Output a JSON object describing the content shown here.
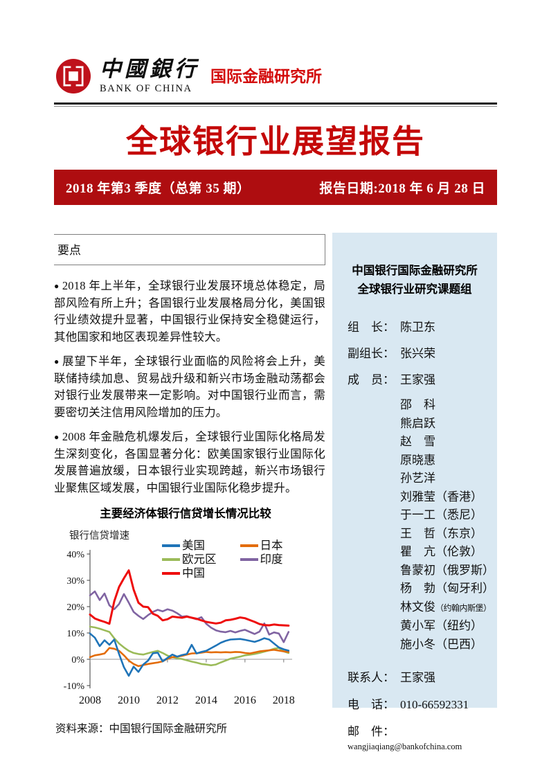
{
  "colors": {
    "title_red": "#c40808",
    "banner_red": "#ae0d10",
    "brand_red": "#bf121b",
    "institute_red": "#d30b0b",
    "panel_blue": "#d9e8f2",
    "rule_gray": "#7f7f7f"
  },
  "header": {
    "logo_cn": "中國銀行",
    "logo_en": "BANK OF CHINA",
    "institute": "国际金融研究所"
  },
  "title": "全球银行业展望报告",
  "banner": {
    "issue": "2018 年第3 季度（总第 35 期）",
    "date": "报告日期:2018 年 6 月 28 日"
  },
  "keypoints_title": "要点",
  "bullet_glyph": "●",
  "keypoints": [
    "2018 年上半年，全球银行业发展环境总体稳定，局部风险有所上升；各国银行业发展格局分化，美国银行业绩效提升显著，中国银行业保持安全稳健运行，其他国家和地区表现差异性较大。",
    "展望下半年，全球银行业面临的风险将会上升，美联储持续加息、贸易战升级和新兴市场金融动荡都会对银行业发展带来一定影响。对中国银行业而言，需要密切关注信用风险增加的压力。",
    "2008 年金融危机爆发后，全球银行业国际化格局发生深刻变化，各国显著分化：欧美国家银行业国际化发展普遍放缓，日本银行业实现跨越，新兴市场银行业聚焦区域发展，中国银行业国际化稳步提升。"
  ],
  "chart_source": "资料来源：中国银行国际金融研究所",
  "panel": {
    "heading_line1": "中国银行国际金融研究所",
    "heading_line2": "全球银行业研究课题组",
    "paren_open": "（",
    "paren_close": "）",
    "roles": [
      {
        "label": "组　长：",
        "name": "陈卫东"
      },
      {
        "label": "副组长：",
        "name": "张兴荣"
      },
      {
        "label": "成　员：",
        "name": "王家强"
      }
    ],
    "members": [
      {
        "n": "邵　科"
      },
      {
        "n": "熊启跃"
      },
      {
        "n": "赵　雪"
      },
      {
        "n": "原晓惠"
      },
      {
        "n": "孙艺洋"
      },
      {
        "n": "刘雅莹",
        "loc": "香港"
      },
      {
        "n": "于一工",
        "loc": "悉尼"
      },
      {
        "n": "王　哲",
        "loc": "东京"
      },
      {
        "n": "瞿　亢",
        "loc": "伦敦"
      },
      {
        "n": "鲁蒙初",
        "loc": "俄罗斯"
      },
      {
        "n": "杨　勃",
        "loc": "匈牙利"
      },
      {
        "n": "林文俊",
        "loc": "约翰内斯堡"
      },
      {
        "n": "黄小军",
        "loc": "纽约"
      },
      {
        "n": "施小冬",
        "loc": "巴西"
      }
    ],
    "contacts": [
      {
        "label": "联系人：",
        "value": "王家强"
      },
      {
        "label": "电　话：",
        "value": "010-66592331"
      },
      {
        "label": "邮　件：",
        "value": "wangjiaqiang@bankofchina.com"
      }
    ]
  },
  "chart_data": {
    "type": "line",
    "title": "主要经济体银行信贷增长情况比较",
    "ylabel": "银行信贷增速",
    "xlabel": "",
    "ylim": [
      -10,
      40
    ],
    "xlim": [
      2008,
      2018.4
    ],
    "yticks": [
      40,
      30,
      20,
      10,
      0,
      -10
    ],
    "ytick_suffix": "%",
    "xticks": [
      2008,
      2010,
      2012,
      2014,
      2016,
      2018
    ],
    "grid": "zero-line-only",
    "legend_position": "top-inside",
    "legend_columns": [
      [
        0,
        1,
        2
      ],
      [
        3,
        4
      ]
    ],
    "draw_order": [
      1,
      3,
      0,
      4,
      2
    ],
    "x": [
      2008,
      2008.25,
      2008.5,
      2008.75,
      2009,
      2009.25,
      2009.5,
      2009.75,
      2010,
      2010.25,
      2010.5,
      2010.75,
      2011,
      2011.25,
      2011.5,
      2011.75,
      2012,
      2012.25,
      2012.5,
      2012.75,
      2013,
      2013.25,
      2013.5,
      2013.75,
      2014,
      2014.25,
      2014.5,
      2014.75,
      2015,
      2015.25,
      2015.5,
      2015.75,
      2016,
      2016.25,
      2016.5,
      2016.75,
      2017,
      2017.25,
      2017.5,
      2017.75,
      2018,
      2018.25
    ],
    "series": [
      {
        "name": "美国",
        "color": "#1f74b8",
        "values": [
          9.8,
          8.2,
          5.0,
          7.2,
          5.5,
          7.5,
          2.0,
          -3.0,
          -6.3,
          -2.8,
          -4.8,
          -2.0,
          -0.5,
          2.3,
          2.5,
          -0.8,
          0.5,
          1.8,
          1.0,
          1.6,
          2.0,
          5.5,
          2.2,
          2.8,
          3.2,
          4.2,
          5.2,
          6.3,
          7.0,
          7.5,
          7.6,
          7.7,
          7.4,
          7.0,
          6.6,
          7.2,
          8.0,
          7.5,
          6.0,
          4.5,
          3.8,
          3.3
        ]
      },
      {
        "name": "欧元区",
        "color": "#9bbb59",
        "values": [
          12.4,
          12.1,
          11.6,
          11.0,
          10.4,
          8.0,
          6.0,
          4.5,
          3.2,
          2.4,
          2.0,
          1.8,
          2.3,
          2.8,
          3.2,
          2.4,
          1.4,
          0.8,
          0.4,
          0.1,
          -0.4,
          -0.9,
          -1.3,
          -1.8,
          -2.0,
          -2.3,
          -2.0,
          -1.2,
          -0.5,
          0.2,
          0.6,
          1.0,
          1.5,
          1.7,
          2.0,
          2.4,
          2.9,
          3.4,
          4.0,
          4.3,
          3.0,
          2.4
        ]
      },
      {
        "name": "中国",
        "color": "#ee0d0d",
        "values": [
          17.0,
          15.5,
          14.8,
          14.2,
          13.5,
          22.0,
          27.5,
          30.8,
          33.8,
          26.5,
          21.5,
          20.0,
          19.8,
          17.3,
          16.5,
          14.8,
          15.2,
          16.2,
          16.0,
          15.8,
          16.2,
          15.8,
          15.4,
          14.8,
          14.2,
          13.9,
          13.6,
          13.9,
          14.8,
          15.0,
          15.4,
          15.9,
          15.6,
          14.9,
          14.2,
          13.4,
          13.0,
          12.9,
          13.2,
          13.0,
          12.9,
          12.8
        ]
      },
      {
        "name": "日本",
        "color": "#e36c09",
        "values": [
          0.8,
          1.5,
          1.8,
          2.2,
          4.3,
          4.0,
          3.2,
          1.5,
          -0.5,
          -1.8,
          -2.6,
          -2.2,
          -1.8,
          -1.5,
          -1.2,
          -0.8,
          0.2,
          0.8,
          1.0,
          1.3,
          1.8,
          2.2,
          2.3,
          2.5,
          2.8,
          2.6,
          2.7,
          2.6,
          2.7,
          2.6,
          2.8,
          2.7,
          2.4,
          2.2,
          2.6,
          3.0,
          3.2,
          3.4,
          3.6,
          3.3,
          3.0,
          2.8
        ]
      },
      {
        "name": "印度",
        "color": "#8064a2",
        "values": [
          24.3,
          25.8,
          22.5,
          25.0,
          20.5,
          19.0,
          21.0,
          24.8,
          21.5,
          18.0,
          16.5,
          15.3,
          16.8,
          18.0,
          18.8,
          18.2,
          19.0,
          18.5,
          17.5,
          16.2,
          16.4,
          15.8,
          15.2,
          16.0,
          13.5,
          12.0,
          11.0,
          10.5,
          10.3,
          10.8,
          10.2,
          10.8,
          11.2,
          10.4,
          9.6,
          10.5,
          13.6,
          9.4,
          10.2,
          9.8,
          6.5,
          10.4
        ]
      }
    ]
  }
}
